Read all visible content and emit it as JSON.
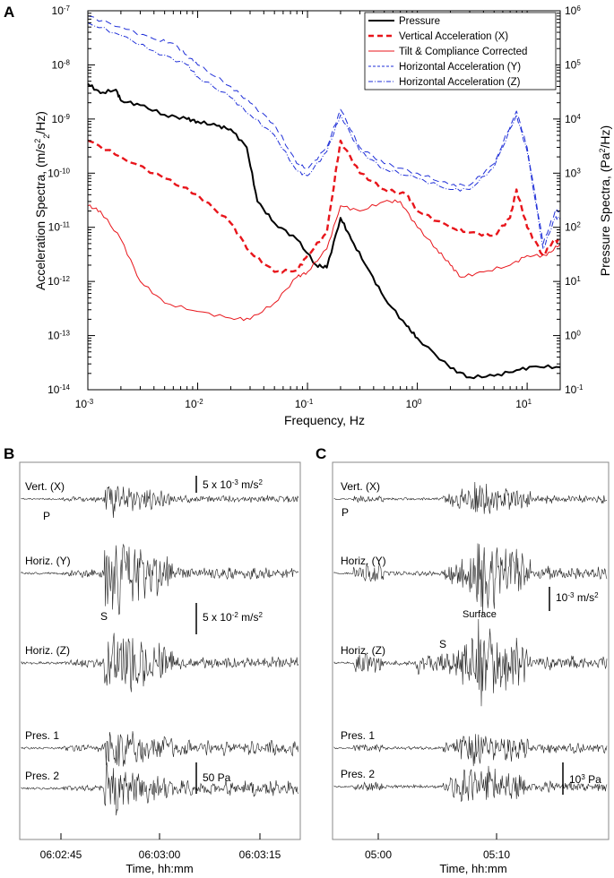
{
  "panels": {
    "a": {
      "letter": "A"
    },
    "b": {
      "letter": "B"
    },
    "c": {
      "letter": "C"
    }
  },
  "colors": {
    "black": "#000000",
    "red": "#e8151b",
    "blue": "#1f2fd8"
  },
  "chart_data": [
    {
      "type": "line",
      "id": "A",
      "xscale": "log",
      "xlim": [
        0.001,
        20
      ],
      "ylim_left": [
        1e-14,
        1e-07
      ],
      "ylim_right": [
        0.1,
        1000000
      ],
      "xlabel": "Frequency, Hz",
      "ylabel_left": {
        "base": "Acceleration Spectra, (m/s",
        "sup": "2",
        "sub": "2",
        "tail": "/Hz)"
      },
      "ylabel_right": {
        "base": "Pressure Spectra, (Pa",
        "sup": "2",
        "tail": "/Hz)"
      },
      "xticks": [
        "10",
        "10",
        "10",
        "10",
        "10"
      ],
      "xtick_exps": [
        "-3",
        "-2",
        "-1",
        "0",
        "1"
      ],
      "yticks_left": [
        "10",
        "10",
        "10",
        "10",
        "10",
        "10",
        "10",
        "10"
      ],
      "yticks_left_exps": [
        "-14",
        "-13",
        "-12",
        "-11",
        "-10",
        "-9",
        "-8",
        "-7"
      ],
      "yticks_right": [
        "10",
        "10",
        "10",
        "10",
        "10",
        "10",
        "10",
        "10"
      ],
      "yticks_right_exps": [
        "-1",
        "0",
        "1",
        "2",
        "3",
        "4",
        "5",
        "6"
      ],
      "legend": [
        "Pressure",
        "Vertical Acceleration (X)",
        "Tilt & Compliance Corrected",
        "Horizontal Acceleration (Y)",
        "Horizontal Acceleration (Z)"
      ],
      "series": [
        {
          "name": "Pressure",
          "axis": "right",
          "color": "#000000",
          "style": "solid",
          "points": [
            [
              0.001,
              45000
            ],
            [
              0.0013,
              30000
            ],
            [
              0.0018,
              35000
            ],
            [
              0.002,
              22000
            ],
            [
              0.003,
              18000
            ],
            [
              0.005,
              12000
            ],
            [
              0.008,
              10000
            ],
            [
              0.01,
              9000
            ],
            [
              0.015,
              7500
            ],
            [
              0.02,
              6500
            ],
            [
              0.028,
              3000
            ],
            [
              0.035,
              300
            ],
            [
              0.05,
              120
            ],
            [
              0.08,
              60
            ],
            [
              0.12,
              20
            ],
            [
              0.15,
              18
            ],
            [
              0.2,
              150
            ],
            [
              0.25,
              60
            ],
            [
              0.35,
              18
            ],
            [
              0.5,
              5
            ],
            [
              0.8,
              1.5
            ],
            [
              1.0,
              0.9
            ],
            [
              2.0,
              0.25
            ],
            [
              3.0,
              0.17
            ],
            [
              5.0,
              0.18
            ],
            [
              8.0,
              0.23
            ],
            [
              12.0,
              0.27
            ],
            [
              20.0,
              0.26
            ]
          ]
        },
        {
          "name": "Vertical Acceleration (X)",
          "axis": "left",
          "color": "#e8151b",
          "style": "dashed",
          "points": [
            [
              0.001,
              4e-10
            ],
            [
              0.002,
              2e-10
            ],
            [
              0.005,
              8e-11
            ],
            [
              0.01,
              4e-11
            ],
            [
              0.02,
              1.2e-11
            ],
            [
              0.03,
              3.5e-12
            ],
            [
              0.05,
              1.5e-12
            ],
            [
              0.08,
              1.6e-12
            ],
            [
              0.1,
              3e-12
            ],
            [
              0.15,
              8e-12
            ],
            [
              0.2,
              4e-10
            ],
            [
              0.3,
              1e-10
            ],
            [
              0.5,
              5e-11
            ],
            [
              0.8,
              4e-11
            ],
            [
              1.0,
              2e-11
            ],
            [
              2.0,
              1e-11
            ],
            [
              3.0,
              8e-12
            ],
            [
              5.0,
              7e-12
            ],
            [
              7.0,
              1.5e-11
            ],
            [
              8.0,
              5e-11
            ],
            [
              10.0,
              1e-11
            ],
            [
              14.0,
              3e-12
            ],
            [
              18.0,
              6e-12
            ],
            [
              20.0,
              5e-12
            ]
          ]
        },
        {
          "name": "Tilt & Compliance Corrected",
          "axis": "left",
          "color": "#e8151b",
          "style": "solid",
          "points": [
            [
              0.001,
              2.5e-11
            ],
            [
              0.0013,
              2e-11
            ],
            [
              0.002,
              6e-12
            ],
            [
              0.003,
              1e-12
            ],
            [
              0.005,
              4e-13
            ],
            [
              0.01,
              2.8e-13
            ],
            [
              0.02,
              2.1e-13
            ],
            [
              0.03,
              2e-13
            ],
            [
              0.05,
              4e-13
            ],
            [
              0.08,
              1.2e-12
            ],
            [
              0.1,
              1.5e-12
            ],
            [
              0.15,
              4e-12
            ],
            [
              0.2,
              2.5e-11
            ],
            [
              0.3,
              2e-11
            ],
            [
              0.5,
              3e-11
            ],
            [
              0.7,
              3e-11
            ],
            [
              1.0,
              1e-11
            ],
            [
              1.5,
              4e-12
            ],
            [
              2.0,
              2e-12
            ],
            [
              2.5,
              1.2e-12
            ],
            [
              4.0,
              1.5e-12
            ],
            [
              7.0,
              2e-12
            ],
            [
              10.0,
              3e-12
            ],
            [
              15.0,
              3e-12
            ],
            [
              20.0,
              5e-12
            ]
          ]
        },
        {
          "name": "Horizontal Acceleration (Y)",
          "axis": "left",
          "color": "#1f2fd8",
          "style": "dashed",
          "points": [
            [
              0.001,
              8e-08
            ],
            [
              0.002,
              5e-08
            ],
            [
              0.004,
              3e-08
            ],
            [
              0.006,
              2.5e-08
            ],
            [
              0.008,
              1.5e-08
            ],
            [
              0.01,
              1e-08
            ],
            [
              0.02,
              4e-09
            ],
            [
              0.03,
              2e-09
            ],
            [
              0.05,
              8e-10
            ],
            [
              0.08,
              1.5e-10
            ],
            [
              0.1,
              1.2e-10
            ],
            [
              0.15,
              3e-10
            ],
            [
              0.2,
              1.5e-09
            ],
            [
              0.3,
              3e-10
            ],
            [
              0.5,
              1.5e-10
            ],
            [
              1.0,
              1e-10
            ],
            [
              2.0,
              6e-11
            ],
            [
              3.0,
              6e-11
            ],
            [
              5.0,
              1.5e-10
            ],
            [
              8.0,
              1.4e-09
            ],
            [
              10.0,
              3e-10
            ],
            [
              14.0,
              5e-12
            ],
            [
              18.0,
              2e-11
            ],
            [
              20.0,
              2e-11
            ]
          ]
        },
        {
          "name": "Horizontal Acceleration (Z)",
          "axis": "left",
          "color": "#1f2fd8",
          "style": "dashdot",
          "points": [
            [
              0.001,
              6e-08
            ],
            [
              0.002,
              3.5e-08
            ],
            [
              0.004,
              1.8e-08
            ],
            [
              0.008,
              1e-08
            ],
            [
              0.01,
              6e-09
            ],
            [
              0.02,
              2.5e-09
            ],
            [
              0.03,
              1.2e-09
            ],
            [
              0.05,
              5e-10
            ],
            [
              0.08,
              1.1e-10
            ],
            [
              0.1,
              9e-11
            ],
            [
              0.15,
              2.5e-10
            ],
            [
              0.2,
              1.2e-09
            ],
            [
              0.3,
              2.5e-10
            ],
            [
              0.5,
              1.2e-10
            ],
            [
              1.0,
              8e-11
            ],
            [
              2.0,
              5e-11
            ],
            [
              3.0,
              5e-11
            ],
            [
              5.0,
              1.3e-10
            ],
            [
              8.0,
              1.2e-09
            ],
            [
              10.0,
              2.5e-10
            ],
            [
              14.0,
              4e-12
            ],
            [
              18.0,
              1.5e-11
            ],
            [
              20.0,
              1.5e-11
            ]
          ]
        }
      ]
    },
    {
      "type": "line",
      "id": "B",
      "xlabel": "Time, hh:mm",
      "xticks": [
        "06:02:45",
        "06:03:00",
        "06:03:15"
      ],
      "traces": [
        {
          "label": "Vert. (X)",
          "amp": 0.6
        },
        {
          "label": "Horiz. (Y)",
          "amp": 1.0
        },
        {
          "label": "Horiz. (Z)",
          "amp": 1.0
        },
        {
          "label": "Pres. 1",
          "amp": 0.8
        },
        {
          "label": "Pres. 2",
          "amp": 0.8
        }
      ],
      "annotations": [
        "P",
        "S"
      ],
      "scale_bars": [
        {
          "text": "5 x 10",
          "exp": "-3",
          "unit": " m/s",
          "unit_sup": "2"
        },
        {
          "text": "5 x 10",
          "exp": "-2",
          "unit": " m/s",
          "unit_sup": "2"
        },
        {
          "text": "50 Pa",
          "exp": "",
          "unit": "",
          "unit_sup": ""
        }
      ]
    },
    {
      "type": "line",
      "id": "C",
      "xlabel": "Time, hh:mm",
      "xticks": [
        "05:00",
        "05:10"
      ],
      "traces": [
        {
          "label": "Vert. (X)",
          "amp": 0.6
        },
        {
          "label": "Horiz. (Y)",
          "amp": 1.0
        },
        {
          "label": "Horiz. (Z)",
          "amp": 1.0
        },
        {
          "label": "Pres. 1",
          "amp": 0.7
        },
        {
          "label": "Pres. 2",
          "amp": 0.8
        }
      ],
      "annotations": [
        "P",
        "Surface",
        "S"
      ],
      "scale_bars": [
        {
          "text": "10",
          "exp": "-3",
          "unit": " m/s",
          "unit_sup": "2"
        },
        {
          "text": "10",
          "exp": "3",
          "unit": " Pa",
          "unit_sup": ""
        }
      ]
    }
  ]
}
